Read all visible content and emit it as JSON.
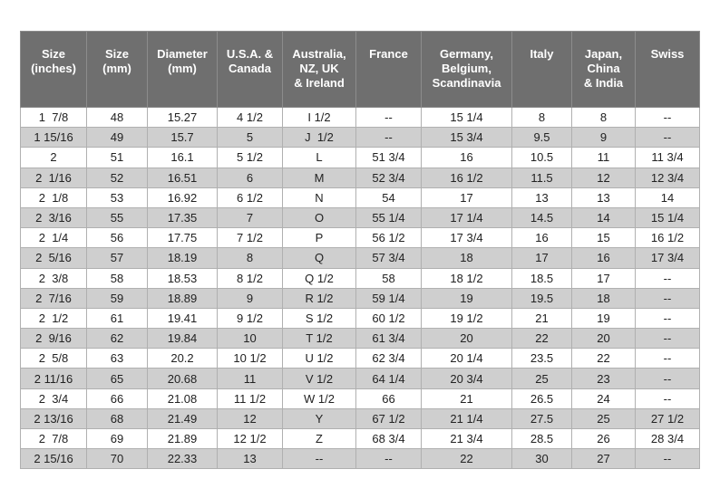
{
  "headers": [
    "Size\n(inches)",
    "Size\n(mm)",
    "Diameter\n(mm)",
    "U.S.A. &\nCanada",
    "Australia,\nNZ, UK\n& Ireland",
    "France",
    "Germany,\nBelgium,\nScandinavia",
    "Italy",
    "Japan,\nChina\n& India",
    "Swiss"
  ],
  "rows": [
    [
      "1  7/8",
      "48",
      "15.27",
      "4 1/2",
      "I 1/2",
      "--",
      "15 1/4",
      "8",
      "8",
      "--"
    ],
    [
      "1 15/16",
      "49",
      "15.7",
      "5",
      "J  1/2",
      "--",
      "15 3/4",
      "9.5",
      "9",
      "--"
    ],
    [
      "2",
      "51",
      "16.1",
      "5 1/2",
      "L",
      "51 3/4",
      "16",
      "10.5",
      "11",
      "11 3/4"
    ],
    [
      "2  1/16",
      "52",
      "16.51",
      "6",
      "M",
      "52 3/4",
      "16 1/2",
      "11.5",
      "12",
      "12 3/4"
    ],
    [
      "2  1/8",
      "53",
      "16.92",
      "6 1/2",
      "N",
      "54",
      "17",
      "13",
      "13",
      "14"
    ],
    [
      "2  3/16",
      "55",
      "17.35",
      "7",
      "O",
      "55 1/4",
      "17 1/4",
      "14.5",
      "14",
      "15 1/4"
    ],
    [
      "2  1/4",
      "56",
      "17.75",
      "7 1/2",
      "P",
      "56 1/2",
      "17 3/4",
      "16",
      "15",
      "16 1/2"
    ],
    [
      "2  5/16",
      "57",
      "18.19",
      "8",
      "Q",
      "57 3/4",
      "18",
      "17",
      "16",
      "17 3/4"
    ],
    [
      "2  3/8",
      "58",
      "18.53",
      "8 1/2",
      "Q 1/2",
      "58",
      "18 1/2",
      "18.5",
      "17",
      "--"
    ],
    [
      "2  7/16",
      "59",
      "18.89",
      "9",
      "R 1/2",
      "59 1/4",
      "19",
      "19.5",
      "18",
      "--"
    ],
    [
      "2  1/2",
      "61",
      "19.41",
      "9 1/2",
      "S 1/2",
      "60 1/2",
      "19 1/2",
      "21",
      "19",
      "--"
    ],
    [
      "2  9/16",
      "62",
      "19.84",
      "10",
      "T 1/2",
      "61 3/4",
      "20",
      "22",
      "20",
      "--"
    ],
    [
      "2  5/8",
      "63",
      "20.2",
      "10 1/2",
      "U 1/2",
      "62 3/4",
      "20 1/4",
      "23.5",
      "22",
      "--"
    ],
    [
      "2 11/16",
      "65",
      "20.68",
      "11",
      "V 1/2",
      "64 1/4",
      "20 3/4",
      "25",
      "23",
      "--"
    ],
    [
      "2  3/4",
      "66",
      "21.08",
      "11 1/2",
      "W 1/2",
      "66",
      "21",
      "26.5",
      "24",
      "--"
    ],
    [
      "2 13/16",
      "68",
      "21.49",
      "12",
      "Y",
      "67 1/2",
      "21 1/4",
      "27.5",
      "25",
      "27 1/2"
    ],
    [
      "2  7/8",
      "69",
      "21.89",
      "12 1/2",
      "Z",
      "68 3/4",
      "21 3/4",
      "28.5",
      "26",
      "28 3/4"
    ],
    [
      "2 15/16",
      "70",
      "22.33",
      "13",
      "--",
      "--",
      "22",
      "30",
      "27",
      "--"
    ]
  ],
  "colors": {
    "header_bg": "#6f6f6f",
    "header_text": "#ffffff",
    "alt_row_bg": "#cfcfcf",
    "plain_row_bg": "#ffffff"
  }
}
